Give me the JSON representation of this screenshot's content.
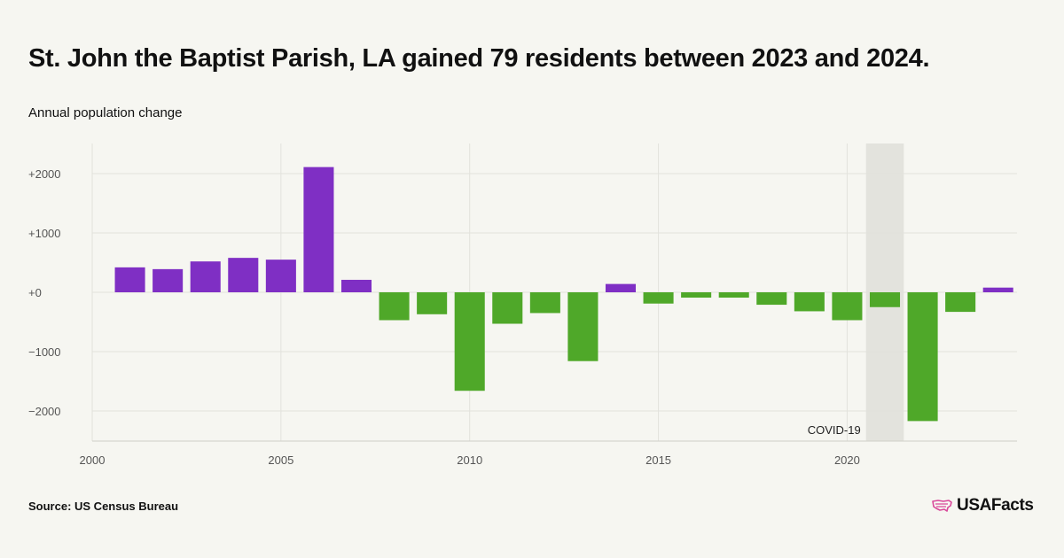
{
  "header": {
    "title": "St. John the Baptist Parish, LA gained 79 residents between 2023 and 2024.",
    "subtitle": "Annual population change"
  },
  "footer": {
    "source": "Source: US Census Bureau",
    "brand": "USAFacts"
  },
  "colors": {
    "positive": "#7f2fc4",
    "negative": "#4fa829",
    "band": "#e3e3dd",
    "grid": "#e2e2dc"
  },
  "chart_data": {
    "type": "bar",
    "x": [
      2001,
      2002,
      2003,
      2004,
      2005,
      2006,
      2007,
      2008,
      2009,
      2010,
      2011,
      2012,
      2013,
      2014,
      2015,
      2016,
      2017,
      2018,
      2019,
      2020,
      2021,
      2022,
      2023,
      2024
    ],
    "values": [
      420,
      390,
      520,
      580,
      550,
      2110,
      210,
      -470,
      -370,
      -1660,
      -530,
      -350,
      -1160,
      140,
      -190,
      -90,
      -90,
      -210,
      -320,
      -470,
      -250,
      -2170,
      -330,
      79
    ],
    "xticks": [
      2000,
      2005,
      2010,
      2015,
      2020
    ],
    "xtick_labels": [
      "2000",
      "2005",
      "2010",
      "2015",
      "2020"
    ],
    "yticks": [
      2000,
      1000,
      0,
      -1000,
      -2000
    ],
    "ytick_labels": [
      "+2000",
      "+1000",
      "+0",
      "−1000",
      "−2000"
    ],
    "xlim": [
      2000,
      2024.5
    ],
    "ylim": [
      -2500,
      2500
    ],
    "highlight": {
      "label": "COVID-19",
      "start": 2020.5,
      "end": 2021.5
    },
    "grid": true
  }
}
